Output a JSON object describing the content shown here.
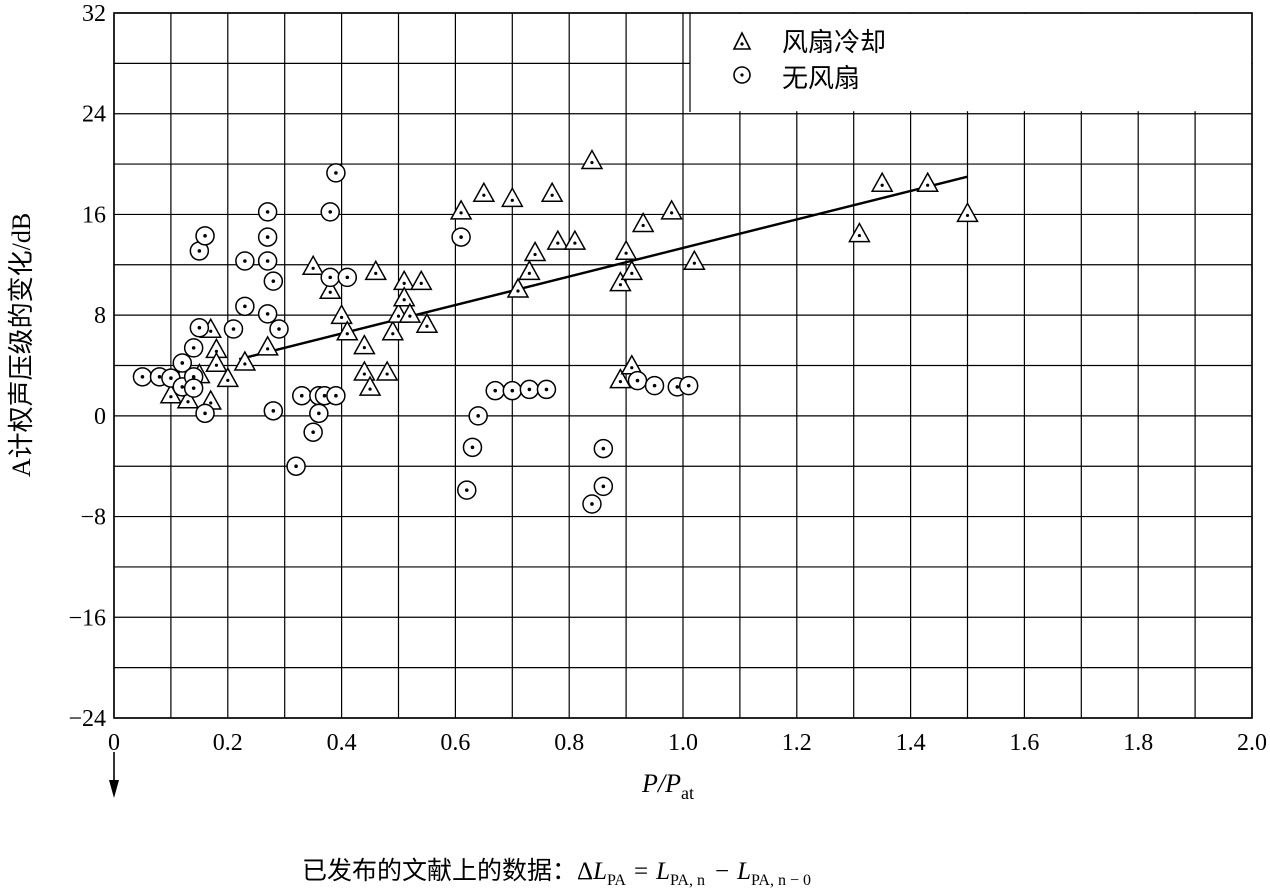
{
  "chart_data": {
    "type": "scatter",
    "xlabel_main": "P/P",
    "xlabel_sub": "at",
    "ylabel": "A计权声压级的变化/dB",
    "xlim": [
      0,
      2.0
    ],
    "ylim": [
      -24,
      32
    ],
    "x_ticks": [
      "0",
      "0.2",
      "0.4",
      "0.6",
      "0.8",
      "1.0",
      "1.2",
      "1.4",
      "1.6",
      "1.8",
      "2.0"
    ],
    "y_ticks": [
      "32",
      "24",
      "16",
      "8",
      "0",
      "−8",
      "−16",
      "−24"
    ],
    "grid": true,
    "legend_placement": "top-right",
    "series": [
      {
        "name": "风扇冷却",
        "marker": "triangle-dot",
        "points": [
          [
            0.1,
            1.6
          ],
          [
            0.12,
            3.0
          ],
          [
            0.13,
            1.2
          ],
          [
            0.15,
            3.2
          ],
          [
            0.17,
            1.1
          ],
          [
            0.17,
            6.8
          ],
          [
            0.18,
            5.2
          ],
          [
            0.18,
            4.1
          ],
          [
            0.2,
            2.9
          ],
          [
            0.23,
            4.2
          ],
          [
            0.27,
            5.4
          ],
          [
            0.35,
            11.8
          ],
          [
            0.38,
            9.9
          ],
          [
            0.4,
            7.9
          ],
          [
            0.41,
            6.6
          ],
          [
            0.44,
            5.5
          ],
          [
            0.44,
            3.4
          ],
          [
            0.45,
            2.2
          ],
          [
            0.46,
            11.4
          ],
          [
            0.48,
            3.4
          ],
          [
            0.49,
            6.6
          ],
          [
            0.5,
            8.0
          ],
          [
            0.51,
            10.6
          ],
          [
            0.51,
            9.3
          ],
          [
            0.52,
            8.0
          ],
          [
            0.54,
            10.6
          ],
          [
            0.55,
            7.2
          ],
          [
            0.61,
            16.2
          ],
          [
            0.65,
            17.6
          ],
          [
            0.7,
            17.2
          ],
          [
            0.71,
            10.0
          ],
          [
            0.73,
            11.4
          ],
          [
            0.74,
            12.9
          ],
          [
            0.77,
            17.6
          ],
          [
            0.78,
            13.8
          ],
          [
            0.81,
            13.8
          ],
          [
            0.84,
            20.2
          ],
          [
            0.89,
            10.5
          ],
          [
            0.89,
            2.8
          ],
          [
            0.9,
            13.0
          ],
          [
            0.91,
            11.4
          ],
          [
            0.91,
            3.9
          ],
          [
            0.93,
            15.2
          ],
          [
            0.98,
            16.2
          ],
          [
            1.02,
            12.2
          ],
          [
            1.31,
            14.4
          ],
          [
            1.35,
            18.4
          ],
          [
            1.43,
            18.4
          ],
          [
            1.5,
            16.0
          ]
        ]
      },
      {
        "name": "无风扇",
        "marker": "circle-dot",
        "points": [
          [
            0.05,
            3.1
          ],
          [
            0.08,
            3.1
          ],
          [
            0.1,
            3.0
          ],
          [
            0.12,
            4.2
          ],
          [
            0.12,
            2.3
          ],
          [
            0.14,
            5.4
          ],
          [
            0.14,
            3.1
          ],
          [
            0.14,
            2.2
          ],
          [
            0.15,
            7.0
          ],
          [
            0.15,
            13.1
          ],
          [
            0.16,
            14.3
          ],
          [
            0.16,
            0.2
          ],
          [
            0.21,
            6.9
          ],
          [
            0.23,
            12.3
          ],
          [
            0.23,
            8.7
          ],
          [
            0.27,
            16.2
          ],
          [
            0.27,
            14.2
          ],
          [
            0.27,
            12.3
          ],
          [
            0.27,
            8.1
          ],
          [
            0.28,
            10.7
          ],
          [
            0.28,
            0.4
          ],
          [
            0.29,
            6.9
          ],
          [
            0.32,
            -4.0
          ],
          [
            0.33,
            1.6
          ],
          [
            0.35,
            -1.3
          ],
          [
            0.36,
            1.6
          ],
          [
            0.36,
            0.2
          ],
          [
            0.37,
            1.6
          ],
          [
            0.38,
            16.2
          ],
          [
            0.38,
            11.0
          ],
          [
            0.39,
            19.3
          ],
          [
            0.39,
            1.6
          ],
          [
            0.41,
            11.0
          ],
          [
            0.61,
            14.2
          ],
          [
            0.62,
            -5.9
          ],
          [
            0.63,
            -2.5
          ],
          [
            0.64,
            0
          ],
          [
            0.67,
            2.0
          ],
          [
            0.7,
            2.0
          ],
          [
            0.73,
            2.1
          ],
          [
            0.76,
            2.1
          ],
          [
            0.84,
            -7.0
          ],
          [
            0.86,
            -5.6
          ],
          [
            0.86,
            -2.6
          ],
          [
            0.92,
            2.8
          ],
          [
            0.95,
            2.4
          ],
          [
            0.99,
            2.3
          ],
          [
            1.01,
            2.4
          ]
        ]
      }
    ],
    "trend_line": {
      "points": [
        [
          0.22,
          4.5
        ],
        [
          1.5,
          19.0
        ]
      ]
    }
  },
  "caption": {
    "prefix": "已发布的文献上的数据：",
    "formula_delta": "Δ",
    "L1": "L",
    "L1_sub": "PA",
    "eq": "=",
    "L2": "L",
    "L2_sub": "PA, n",
    "minus": "−",
    "L3": "L",
    "L3_sub": "PA, n − 0"
  },
  "colors": {
    "ink": "#000000",
    "background": "#ffffff"
  }
}
